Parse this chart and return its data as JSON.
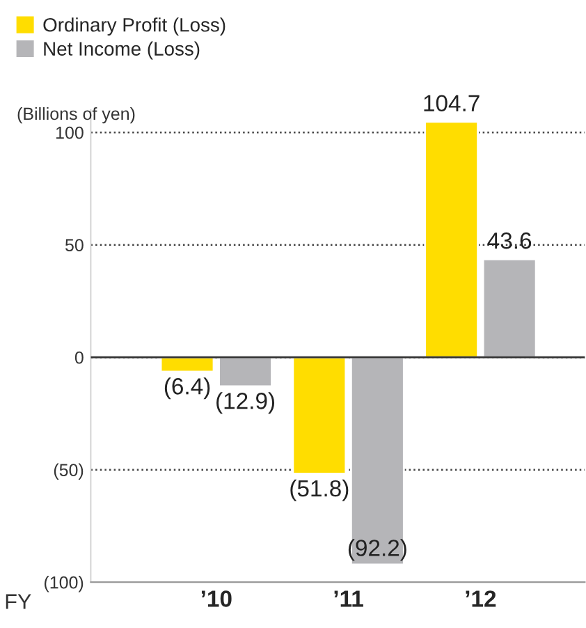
{
  "chart_data": {
    "type": "bar",
    "ylabel": "(Billions of yen)",
    "xlabel": "FY",
    "categories": [
      "’10",
      "’11",
      "’12"
    ],
    "series": [
      {
        "name": "Ordinary Profit (Loss)",
        "color": "#ffdd00",
        "values": [
          -6.4,
          -51.8,
          104.7
        ],
        "value_labels": [
          "(6.4)",
          "(51.8)",
          "104.7"
        ]
      },
      {
        "name": "Net Income (Loss)",
        "color": "#b5b5b8",
        "values": [
          -12.9,
          -92.2,
          43.6
        ],
        "value_labels": [
          "(12.9)",
          "(92.2)",
          "43.6"
        ]
      }
    ],
    "ylim": [
      -100,
      110
    ],
    "yticks": [
      {
        "value": -100,
        "label": "(100)"
      },
      {
        "value": -50,
        "label": "(50)"
      },
      0,
      50,
      100
    ],
    "ref_lines": [
      {
        "axis": "y",
        "value": 0,
        "color": "#333333"
      }
    ],
    "grid": "y",
    "legend": "top left"
  }
}
